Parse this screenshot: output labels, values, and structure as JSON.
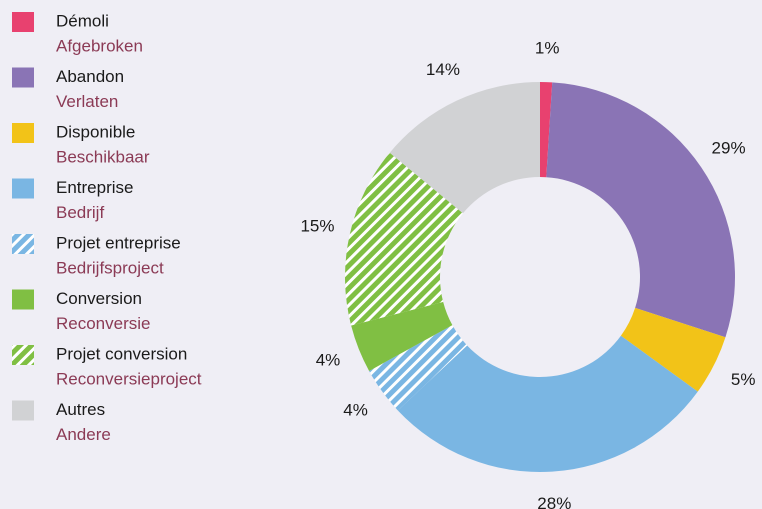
{
  "chart_data": {
    "type": "donut",
    "categories": [
      "Démoli",
      "Abandon",
      "Disponible",
      "Entreprise",
      "Projet entreprise",
      "Conversion",
      "Projet conversion",
      "Autres"
    ],
    "categories_nl": [
      "Afgebroken",
      "Verlaten",
      "Beschikbaar",
      "Bedrijf",
      "Bedrijfsproject",
      "Reconversie",
      "Reconversieproject",
      "Andere"
    ],
    "values": [
      1,
      29,
      5,
      28,
      4,
      4,
      15,
      14
    ],
    "value_labels": [
      "1%",
      "29%",
      "5%",
      "28%",
      "4%",
      "4%",
      "15%",
      "14%"
    ],
    "colors": [
      "#e8416f",
      "#8a74b5",
      "#f2c318",
      "#7ab6e3",
      "#7ab6e3",
      "#80bf43",
      "#80bf43",
      "#d1d2d4"
    ],
    "hatched": [
      false,
      false,
      false,
      false,
      true,
      false,
      true,
      false
    ]
  }
}
